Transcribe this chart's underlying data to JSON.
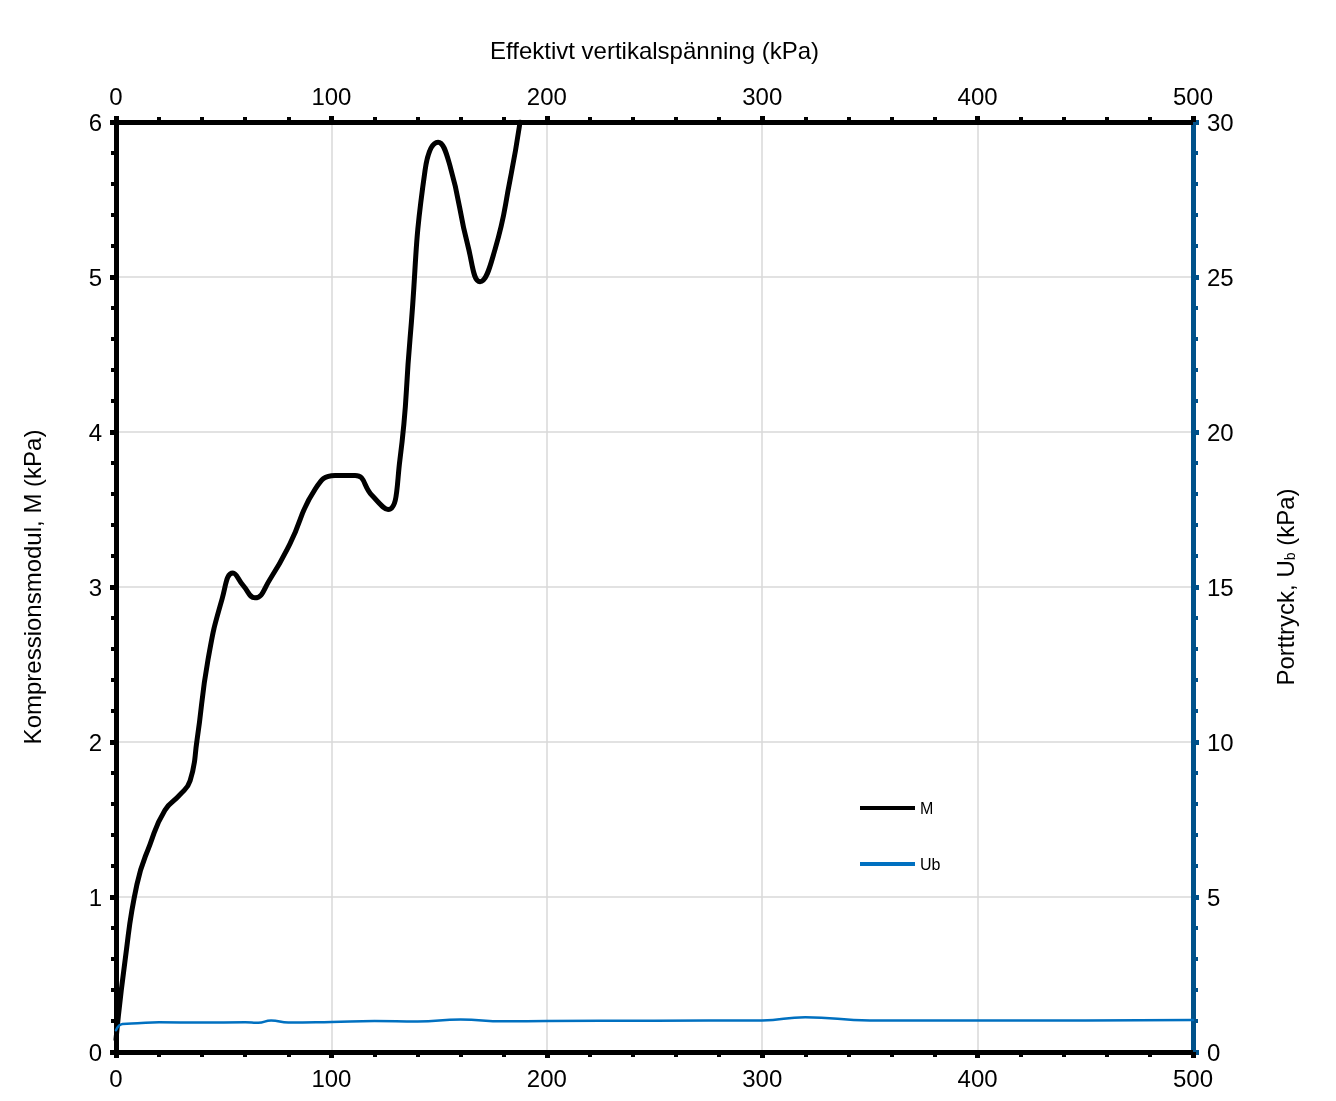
{
  "chart_data": {
    "type": "line",
    "x2label": "Effektivt vertikalspänning (kPa)",
    "ylabel": "Kompressionsmodul, M (kPa)",
    "y2label": "Porttryck, U$_{b}$ (kPa)",
    "xlim": [
      0,
      500
    ],
    "xticks": [
      0,
      100,
      200,
      300,
      400,
      500
    ],
    "x2lim": [
      0,
      500
    ],
    "x2ticks": [
      0,
      100,
      200,
      300,
      400,
      500
    ],
    "ylim": [
      0,
      6
    ],
    "yticks": [
      0,
      1,
      2,
      3,
      4,
      5,
      6
    ],
    "y2lim": [
      0,
      30
    ],
    "y2ticks": [
      0,
      5,
      10,
      15,
      20,
      25,
      30
    ],
    "grid": true,
    "legend": "bottom right",
    "marker": "none",
    "line_style": "solid",
    "series": [
      {
        "name": "M",
        "color": "#000000",
        "x": [
          0,
          4.2,
          9.7,
          15.8,
          22.7,
          29.7,
          34.4,
          37.6,
          42.7,
          49.2,
          54.3,
          59,
          64.5,
          71.5,
          80.8,
          92.4,
          101.7,
          111,
          118.9,
          126.3,
          131.8,
          136.5,
          143.5,
          149.5,
          155,
          163.4,
          169,
          176,
          183,
          187.6
        ],
        "values": [
          0.08,
          0.59,
          1.08,
          1.34,
          1.56,
          1.66,
          1.75,
          2.01,
          2.53,
          2.92,
          3.09,
          3.01,
          2.93,
          3.05,
          3.28,
          3.63,
          3.72,
          3.72,
          3.59,
          3.5,
          3.82,
          4.6,
          5.69,
          5.87,
          5.72,
          5.2,
          4.97,
          5.18,
          5.63,
          6.0
        ]
      },
      {
        "name": "Ub",
        "color": "#0070c0",
        "axis": "y2",
        "x": [
          0,
          3,
          10,
          20,
          40,
          60,
          66,
          72,
          80,
          100,
          120,
          140,
          160,
          180,
          200,
          250,
          300,
          320,
          350,
          400,
          450,
          500
        ],
        "values": [
          0.7,
          0.9,
          0.93,
          0.96,
          0.95,
          0.96,
          0.94,
          1.02,
          0.95,
          0.97,
          1.0,
          0.98,
          1.05,
          0.99,
          1.0,
          1.01,
          1.02,
          1.12,
          1.02,
          1.02,
          1.02,
          1.03
        ]
      }
    ]
  }
}
